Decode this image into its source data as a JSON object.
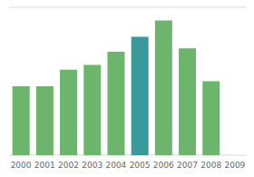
{
  "chart_data": {
    "type": "bar",
    "categories": [
      "2000",
      "2001",
      "2002",
      "2003",
      "2004",
      "2005",
      "2006",
      "2007",
      "2008",
      "2009"
    ],
    "values": [
      42,
      42,
      52,
      55,
      63,
      72,
      82,
      65,
      45,
      0
    ],
    "colors": [
      "#6db56d",
      "#6db56d",
      "#6db56d",
      "#6db56d",
      "#6db56d",
      "#3a9a9a",
      "#6db56d",
      "#6db56d",
      "#6db56d",
      "#6db56d"
    ],
    "ylim": [
      0,
      90
    ],
    "yticks": [
      0,
      22.5,
      45,
      67.5,
      90
    ],
    "grid": true,
    "tick_labels": "x"
  }
}
